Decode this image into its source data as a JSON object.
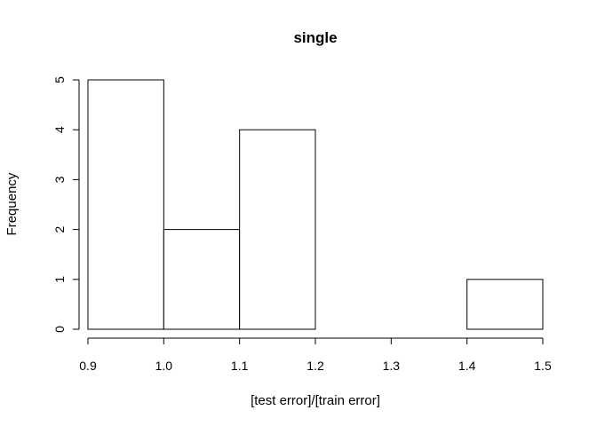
{
  "chart_data": {
    "type": "bar",
    "subtype": "histogram",
    "title": "single",
    "xlabel": "[test error]/[train error]",
    "ylabel": "Frequency",
    "bins": [
      {
        "from": 0.9,
        "to": 1.0,
        "count": 5
      },
      {
        "from": 1.0,
        "to": 1.1,
        "count": 2
      },
      {
        "from": 1.1,
        "to": 1.2,
        "count": 4
      },
      {
        "from": 1.2,
        "to": 1.3,
        "count": 0
      },
      {
        "from": 1.3,
        "to": 1.4,
        "count": 0
      },
      {
        "from": 1.4,
        "to": 1.5,
        "count": 1
      }
    ],
    "xlim": [
      0.9,
      1.5
    ],
    "ylim": [
      0,
      5
    ],
    "x_ticks": [
      "0.9",
      "1.0",
      "1.1",
      "1.2",
      "1.3",
      "1.4",
      "1.5"
    ],
    "y_ticks": [
      "0",
      "1",
      "2",
      "3",
      "4",
      "5"
    ],
    "grid": false,
    "legend": "none",
    "colors": {
      "bar_fill": "#ffffff",
      "bar_stroke": "#000000"
    }
  }
}
